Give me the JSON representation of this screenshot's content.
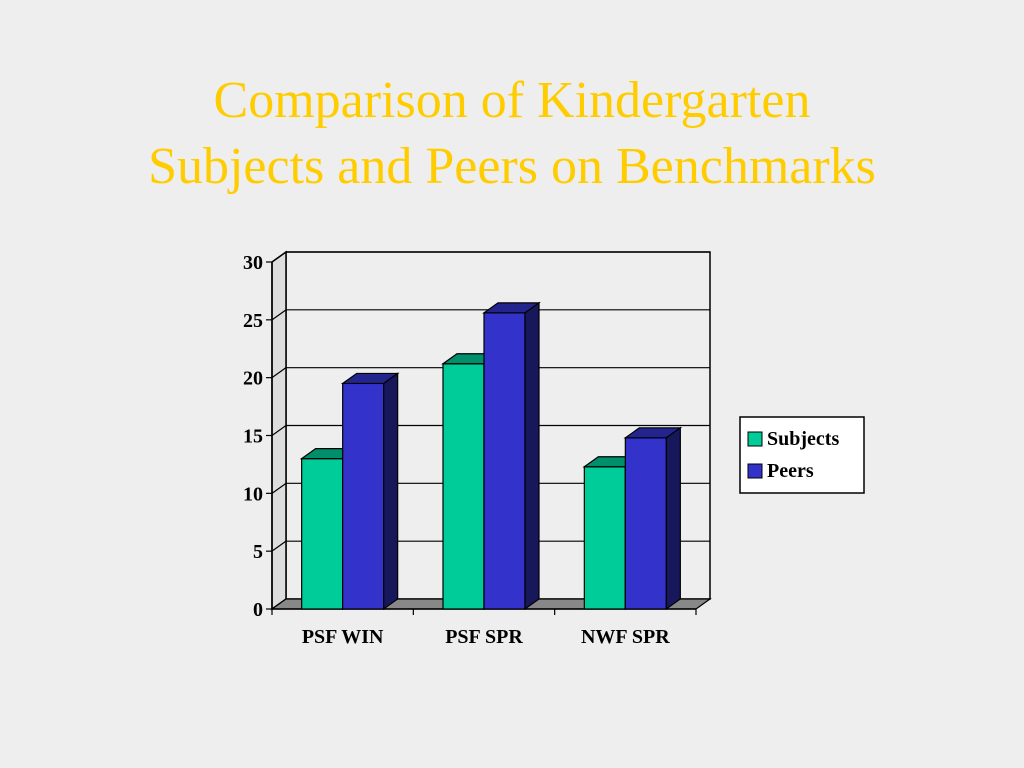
{
  "slide": {
    "title_line1": "Comparison of Kindergarten",
    "title_line2": "Subjects and Peers on Benchmarks",
    "title_color": "#ffcc00"
  },
  "chart_data": {
    "type": "bar",
    "title": "Comparison of Kindergarten Subjects and Peers on Benchmarks",
    "categories": [
      "PSF WIN",
      "PSF SPR",
      "NWF SPR"
    ],
    "series": [
      {
        "name": "Subjects",
        "values": [
          13,
          21.2,
          12.3
        ],
        "color": "#00cc99"
      },
      {
        "name": "Peers",
        "values": [
          19.5,
          25.6,
          14.8
        ],
        "color": "#3333cc"
      }
    ],
    "ylim": [
      0,
      30
    ],
    "yticks": [
      0,
      5,
      10,
      15,
      20,
      25,
      30
    ],
    "grid": true,
    "legend": "right",
    "style": "3d"
  }
}
